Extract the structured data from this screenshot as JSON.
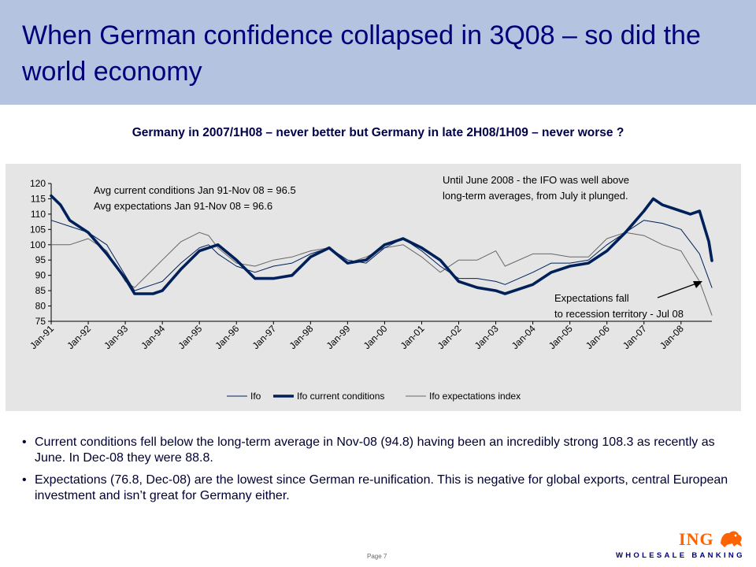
{
  "header": {
    "title": "When German confidence collapsed in 3Q08 – so did the world economy",
    "header_color": "#b4c4e0",
    "title_color": "#00007a"
  },
  "subtitle": "Germany in 2007/1H08 – never better but Germany in late 2H08/1H09 – never worse ?",
  "chart_data": {
    "type": "line",
    "title": "",
    "xlabel": "",
    "ylabel": "",
    "ylim": [
      75,
      120
    ],
    "yticks": [
      75,
      80,
      85,
      90,
      95,
      100,
      105,
      110,
      115,
      120
    ],
    "xlim": [
      "Jan-91",
      "Nov-08"
    ],
    "xticks": [
      "Jan-91",
      "Jan-92",
      "Jan-93",
      "Jan-94",
      "Jan-95",
      "Jan-96",
      "Jan-97",
      "Jan-98",
      "Jan-99",
      "Jan-00",
      "Jan-01",
      "Jan-02",
      "Jan-03",
      "Jan-04",
      "Jan-05",
      "Jan-06",
      "Jan-07",
      "Jan-08"
    ],
    "grid": false,
    "legend": "bottom",
    "series": [
      {
        "name": "Ifo",
        "style": "thin",
        "color": "#00205a",
        "x": [
          "Jan-91",
          "Jul-91",
          "Jan-92",
          "Jul-92",
          "Jan-93",
          "Apr-93",
          "Oct-93",
          "Jan-94",
          "Jul-94",
          "Jan-95",
          "Apr-95",
          "Jul-95",
          "Jan-96",
          "Jul-96",
          "Jan-97",
          "Jul-97",
          "Jan-98",
          "Jul-98",
          "Jan-99",
          "Jul-99",
          "Jan-00",
          "Jul-00",
          "Jan-01",
          "Jul-01",
          "Jan-02",
          "Jul-02",
          "Jan-03",
          "Apr-03",
          "Jan-04",
          "Jul-04",
          "Jan-05",
          "Jul-05",
          "Jan-06",
          "Jul-06",
          "Jan-07",
          "Jul-07",
          "Jan-08",
          "Jul-08",
          "Nov-08"
        ],
        "values": [
          108,
          106,
          104,
          100,
          90,
          85,
          87,
          88,
          94,
          99,
          100,
          97,
          93,
          91,
          93,
          94,
          97,
          99,
          95,
          94,
          99,
          102,
          98,
          93,
          89,
          89,
          88,
          87,
          91,
          94,
          94,
          95,
          100,
          104,
          108,
          107,
          105,
          97,
          86
        ]
      },
      {
        "name": "Ifo current conditions",
        "style": "thick",
        "color": "#00205a",
        "x": [
          "Jan-91",
          "Apr-91",
          "Jul-91",
          "Jan-92",
          "Jul-92",
          "Jan-93",
          "Apr-93",
          "Oct-93",
          "Jan-94",
          "Jul-94",
          "Jan-95",
          "Apr-95",
          "Jul-95",
          "Jan-96",
          "Jul-96",
          "Jan-97",
          "Jul-97",
          "Jan-98",
          "Jul-98",
          "Jan-99",
          "Jul-99",
          "Jan-00",
          "Jul-00",
          "Jan-01",
          "Jul-01",
          "Jan-02",
          "Jul-02",
          "Jan-03",
          "Apr-03",
          "Jan-04",
          "Jul-04",
          "Jan-05",
          "Jul-05",
          "Jan-06",
          "Jul-06",
          "Jan-07",
          "Apr-07",
          "Jul-07",
          "Jan-08",
          "Apr-08",
          "Jul-08",
          "Oct-08",
          "Nov-08"
        ],
        "values": [
          116,
          113,
          108,
          104,
          97,
          89,
          84,
          84,
          85,
          92,
          98,
          99,
          100,
          95,
          89,
          89,
          90,
          96,
          99,
          94,
          95,
          100,
          102,
          99,
          95,
          88,
          86,
          85,
          84,
          87,
          91,
          93,
          94,
          98,
          104,
          111,
          115,
          113,
          111,
          110,
          111,
          101,
          94.8
        ]
      },
      {
        "name": "Ifo expectations index",
        "style": "thin",
        "color": "#666666",
        "x": [
          "Jan-91",
          "Jul-91",
          "Jan-92",
          "Jul-92",
          "Jan-93",
          "Apr-93",
          "Oct-93",
          "Jan-94",
          "Jul-94",
          "Jan-95",
          "Apr-95",
          "Jul-95",
          "Jan-96",
          "Jul-96",
          "Jan-97",
          "Jul-97",
          "Jan-98",
          "Jul-98",
          "Jan-99",
          "Jul-99",
          "Jan-00",
          "Jul-00",
          "Jan-01",
          "Jul-01",
          "Jan-02",
          "Jul-02",
          "Jan-03",
          "Apr-03",
          "Jan-04",
          "Jul-04",
          "Jan-05",
          "Jul-05",
          "Jan-06",
          "Jul-06",
          "Jan-07",
          "Jul-07",
          "Jan-08",
          "Jul-08",
          "Nov-08"
        ],
        "values": [
          100,
          100,
          102,
          98,
          88,
          86,
          92,
          95,
          101,
          104,
          103,
          99,
          94,
          93,
          95,
          96,
          98,
          99,
          94,
          96,
          99,
          100,
          96,
          91,
          95,
          95,
          98,
          93,
          97,
          97,
          96,
          96,
          102,
          104,
          103,
          100,
          98,
          88,
          77
        ]
      }
    ],
    "annotations": [
      {
        "id": "avg_current",
        "text": "Avg current conditions Jan 91-Nov 08 = 96.5"
      },
      {
        "id": "avg_expect",
        "text": "Avg expectations Jan 91-Nov 08 = 96.6"
      },
      {
        "id": "until_1",
        "text": "Until June 2008 - the IFO was well above"
      },
      {
        "id": "until_2",
        "text": "long-term averages, from July it plunged."
      },
      {
        "id": "fall_1",
        "text": "Expectations fall"
      },
      {
        "id": "fall_2",
        "text": "to recession territory - Jul 08"
      }
    ],
    "panel_color": "#e5e5e5"
  },
  "bullets": [
    "Current conditions fell below the long-term average in Nov-08 (94.8) having been an incredibly strong 108.3 as recently as June. In Dec-08 they were 88.8.",
    "Expectations (76.8, Dec-08) are the lowest since German re-unification. This is negative for global exports, central European investment and isn’t great for Germany either."
  ],
  "footer": {
    "page": "Page 7",
    "logo_text": "ING",
    "logo_sub": "WHOLESALE BANKING",
    "logo_icon": "lion-icon",
    "logo_color": "#ff6200"
  }
}
